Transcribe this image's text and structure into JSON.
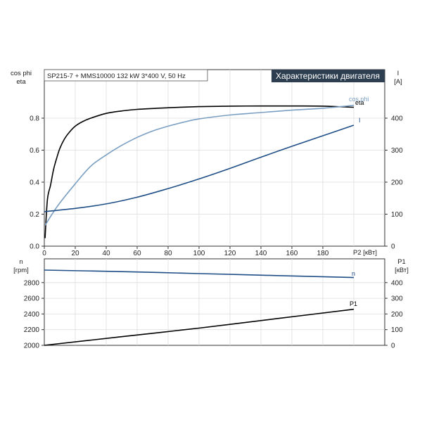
{
  "header": {
    "info": "SP215-7 + MMS10000   132 kW   3*400 V, 50 Hz",
    "title": "Характеристики двигателя"
  },
  "colors": {
    "eta": "#000000",
    "cos_phi": "#7a9fc2",
    "current": "#1f4e86",
    "speed": "#1f4e86",
    "p1": "#000000",
    "title_bg": "#2d3e50"
  },
  "chart_data": [
    {
      "type": "line",
      "xlabel": "P2 [кВт]",
      "ylabel_left": [
        "cos phi",
        "eta"
      ],
      "ylabel_right": [
        "I",
        "[A]"
      ],
      "xlim": [
        0,
        200
      ],
      "ylim_left": [
        0,
        1.0
      ],
      "ylim_right": [
        0,
        500
      ],
      "x_ticks": [
        "0",
        "20",
        "40",
        "60",
        "80",
        "100",
        "120",
        "140",
        "160",
        "180"
      ],
      "y_left_ticks": [
        "0.0",
        "0.2",
        "0.4",
        "0.6",
        "0.8"
      ],
      "y_right_ticks": [
        "0",
        "100",
        "200",
        "300",
        "400"
      ],
      "series": [
        {
          "name": "eta",
          "axis": "left",
          "x": [
            0.5,
            2,
            4,
            6,
            8,
            10,
            13,
            16,
            20,
            25,
            30,
            40,
            50,
            60,
            80,
            100,
            120,
            140,
            160,
            180,
            200
          ],
          "values": [
            0.05,
            0.29,
            0.38,
            0.48,
            0.55,
            0.61,
            0.67,
            0.71,
            0.75,
            0.78,
            0.8,
            0.83,
            0.845,
            0.855,
            0.865,
            0.872,
            0.875,
            0.876,
            0.876,
            0.875,
            0.868
          ]
        },
        {
          "name": "cos phi",
          "axis": "left",
          "x": [
            0.5,
            5,
            10,
            20,
            30,
            40,
            50,
            60,
            70,
            80,
            90,
            100,
            120,
            140,
            160,
            180,
            200
          ],
          "values": [
            0.13,
            0.2,
            0.27,
            0.39,
            0.5,
            0.57,
            0.63,
            0.68,
            0.72,
            0.75,
            0.775,
            0.795,
            0.82,
            0.835,
            0.85,
            0.862,
            0.88
          ]
        },
        {
          "name": "I",
          "axis": "right",
          "x": [
            0,
            20,
            40,
            60,
            80,
            100,
            120,
            140,
            160,
            180,
            200
          ],
          "values": [
            108,
            118,
            132,
            153,
            180,
            210,
            243,
            278,
            312,
            345,
            378
          ]
        }
      ]
    },
    {
      "type": "line",
      "ylabel_left": [
        "n",
        "[rpm]"
      ],
      "ylabel_right": [
        "P1",
        "[кВт]"
      ],
      "xlim": [
        0,
        200
      ],
      "ylim_left": [
        2000,
        3000
      ],
      "ylim_right": [
        0,
        500
      ],
      "y_left_ticks": [
        "2000",
        "2200",
        "2400",
        "2600",
        "2800"
      ],
      "y_right_ticks": [
        "0",
        "100",
        "200",
        "300",
        "400"
      ],
      "series": [
        {
          "name": "n",
          "axis": "left",
          "x": [
            0,
            50,
            100,
            150,
            200
          ],
          "values": [
            2960,
            2940,
            2915,
            2890,
            2865
          ]
        },
        {
          "name": "P1",
          "axis": "right",
          "x": [
            0,
            50,
            100,
            150,
            200
          ],
          "values": [
            0,
            55,
            110,
            170,
            230
          ]
        }
      ]
    }
  ]
}
